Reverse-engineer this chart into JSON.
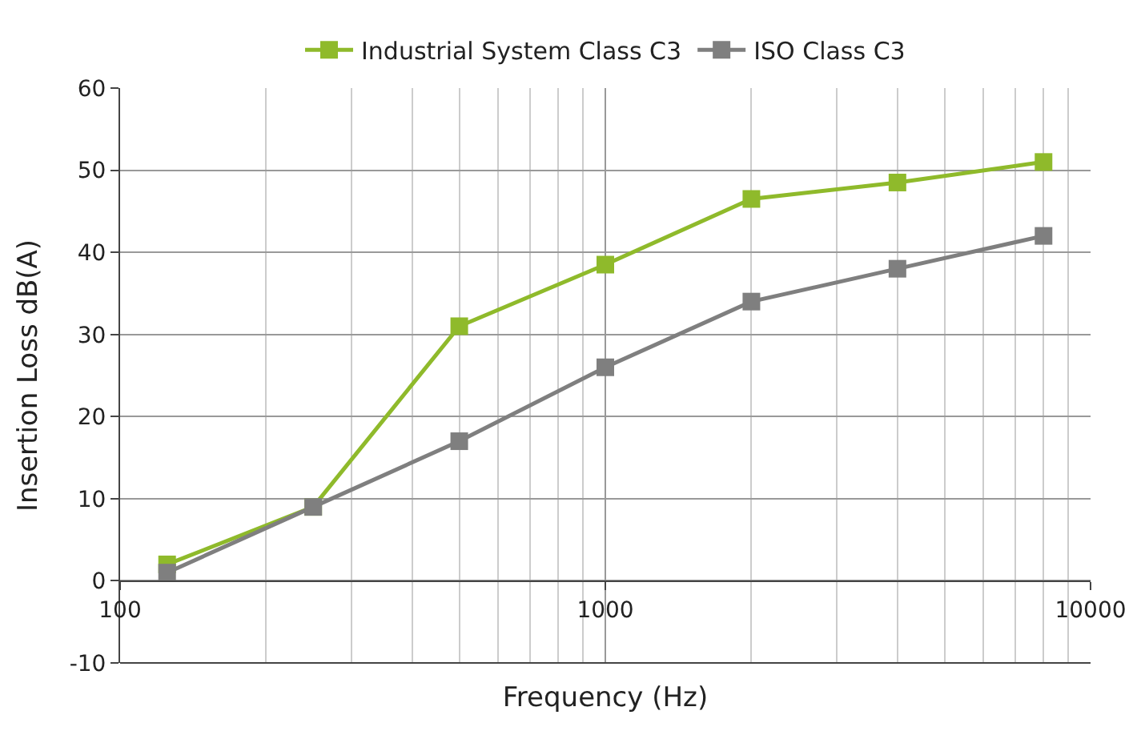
{
  "chart_data": {
    "type": "line",
    "xlabel": "Frequency (Hz)",
    "ylabel": "Insertion Loss dB(A)",
    "x": [
      125,
      250,
      500,
      1000,
      2000,
      4000,
      8000
    ],
    "series": [
      {
        "name": "Industrial System Class C3",
        "color": "#8fba2b",
        "values": [
          2,
          9,
          31,
          38.5,
          46.5,
          48.5,
          51
        ]
      },
      {
        "name": "ISO Class C3",
        "color": "#7f7f7f",
        "values": [
          1,
          9,
          17,
          26,
          34,
          38,
          42
        ]
      }
    ],
    "log": "x",
    "xlim": [
      100,
      10000
    ],
    "xticks": [
      100,
      1000,
      10000
    ],
    "ylim": [
      -10,
      60
    ],
    "yticks": [
      -10,
      0,
      10,
      20,
      30,
      40,
      50,
      60
    ],
    "grid": true,
    "legend": "top",
    "marker": "square",
    "line_style": "solid"
  }
}
